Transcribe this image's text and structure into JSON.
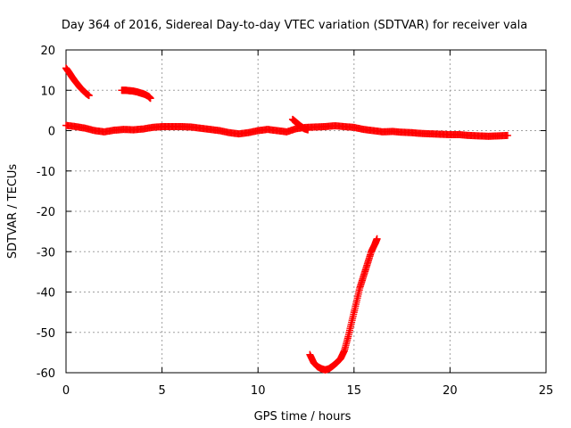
{
  "chart_data": {
    "type": "scatter",
    "title": "Day 364 of 2016, Sidereal Day-to-day VTEC variation (SDTVAR) for receiver vala",
    "xlabel": "GPS time / hours",
    "ylabel": "SDTVAR / TECUs",
    "xlim": [
      0,
      25
    ],
    "ylim": [
      -60,
      20
    ],
    "xticks": [
      0,
      5,
      10,
      15,
      20,
      25
    ],
    "yticks": [
      -60,
      -50,
      -40,
      -30,
      -20,
      -10,
      0,
      10,
      20
    ],
    "grid": true,
    "marker": "+",
    "series_color": "#ff0000",
    "series": [
      {
        "name": "early-decline",
        "x": [
          0.0,
          0.15,
          0.3,
          0.45,
          0.6,
          0.75,
          0.9,
          1.05,
          1.2
        ],
        "y": [
          15.5,
          14.5,
          13.4,
          12.4,
          11.5,
          10.6,
          9.9,
          9.2,
          8.7
        ]
      },
      {
        "name": "mid-morning-arc",
        "x": [
          2.9,
          3.1,
          3.3,
          3.5,
          3.7,
          3.9,
          4.1,
          4.3,
          4.4
        ],
        "y": [
          10.0,
          10.0,
          9.9,
          9.8,
          9.6,
          9.3,
          9.0,
          8.5,
          8.0
        ]
      },
      {
        "name": "main-trend",
        "x": [
          0.0,
          0.5,
          1.0,
          1.5,
          2.0,
          2.5,
          3.0,
          3.5,
          4.0,
          4.5,
          5.0,
          5.5,
          6.0,
          6.5,
          7.0,
          7.5,
          8.0,
          8.5,
          9.0,
          9.5,
          10.0,
          10.5,
          11.0,
          11.5,
          12.0,
          12.5,
          13.0,
          13.5,
          14.0,
          14.5,
          15.0,
          15.5,
          16.0,
          16.5,
          17.0,
          17.5,
          18.0,
          18.5,
          19.0,
          19.5,
          20.0,
          20.5,
          21.0,
          21.5,
          22.0,
          22.5,
          23.0
        ],
        "y": [
          1.3,
          1.0,
          0.6,
          0.0,
          -0.3,
          0.1,
          0.3,
          0.2,
          0.4,
          0.8,
          1.0,
          1.0,
          1.0,
          0.9,
          0.6,
          0.3,
          0.0,
          -0.5,
          -0.8,
          -0.5,
          0.0,
          0.3,
          0.0,
          -0.3,
          0.5,
          0.8,
          0.9,
          1.0,
          1.2,
          1.0,
          0.8,
          0.3,
          0.0,
          -0.3,
          -0.2,
          -0.4,
          -0.5,
          -0.7,
          -0.8,
          -0.9,
          -1.0,
          -1.0,
          -1.2,
          -1.3,
          -1.4,
          -1.3,
          -1.2
        ]
      },
      {
        "name": "late-jump",
        "x": [
          11.8,
          12.0,
          12.2,
          12.4,
          12.6
        ],
        "y": [
          2.8,
          2.0,
          1.2,
          0.5,
          0.2
        ]
      },
      {
        "name": "afternoon-dip",
        "x": [
          12.7,
          12.9,
          13.1,
          13.3,
          13.5,
          13.7,
          13.9,
          14.1,
          14.3,
          14.5,
          14.7,
          14.9,
          15.1,
          15.3,
          15.5,
          15.7,
          15.9,
          16.1,
          16.2
        ],
        "y": [
          -55.5,
          -57.5,
          -58.5,
          -59.0,
          -59.3,
          -59.0,
          -58.3,
          -57.5,
          -56.5,
          -54.5,
          -51.0,
          -47.0,
          -43.0,
          -39.0,
          -36.0,
          -33.0,
          -30.0,
          -28.0,
          -26.8
        ]
      }
    ]
  }
}
